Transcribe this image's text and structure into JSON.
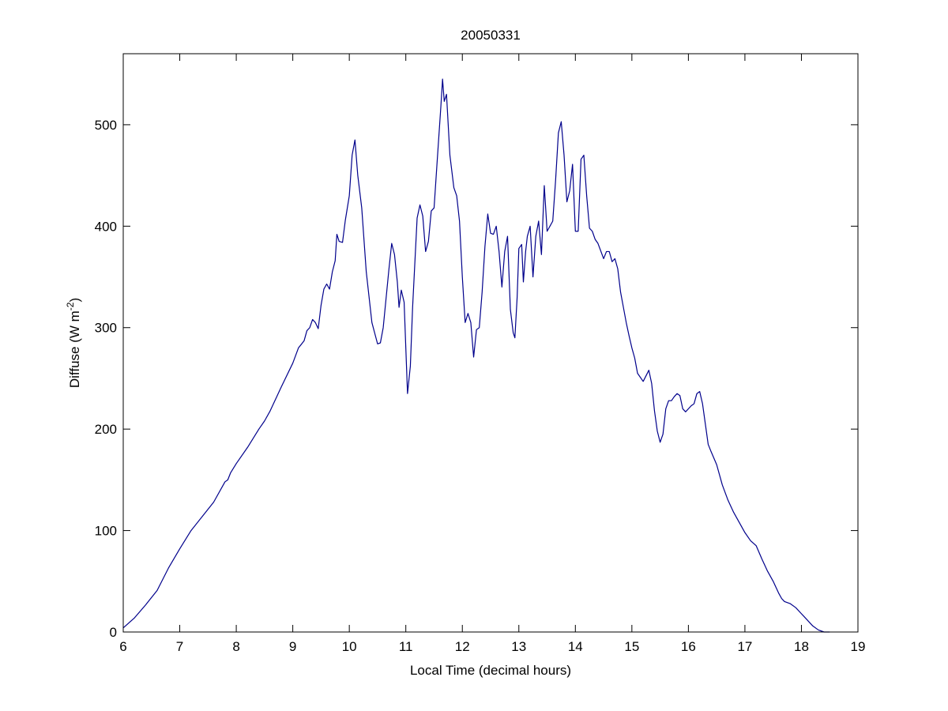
{
  "chart_data": {
    "type": "line",
    "title": "20050331",
    "xlabel": "Local Time (decimal hours)",
    "ylabel_prefix": "Diffuse (W m",
    "ylabel_exponent": "-2",
    "ylabel_suffix": ")",
    "xlim": [
      6,
      19
    ],
    "ylim": [
      0,
      570
    ],
    "xticks": [
      6,
      7,
      8,
      9,
      10,
      11,
      12,
      13,
      14,
      15,
      16,
      17,
      18,
      19
    ],
    "yticks": [
      0,
      100,
      200,
      300,
      400,
      500
    ],
    "grid": false,
    "legend": "none",
    "series": [
      {
        "color": "#00008b",
        "points": [
          [
            6.0,
            4
          ],
          [
            6.2,
            14
          ],
          [
            6.4,
            27
          ],
          [
            6.6,
            41
          ],
          [
            6.8,
            63
          ],
          [
            7.0,
            82
          ],
          [
            7.2,
            100
          ],
          [
            7.4,
            114
          ],
          [
            7.6,
            128
          ],
          [
            7.8,
            148
          ],
          [
            7.85,
            150
          ],
          [
            7.9,
            157
          ],
          [
            8.0,
            166
          ],
          [
            8.2,
            182
          ],
          [
            8.4,
            200
          ],
          [
            8.5,
            208
          ],
          [
            8.6,
            218
          ],
          [
            8.8,
            242
          ],
          [
            9.0,
            265
          ],
          [
            9.1,
            280
          ],
          [
            9.2,
            287
          ],
          [
            9.25,
            297
          ],
          [
            9.3,
            300
          ],
          [
            9.35,
            308
          ],
          [
            9.4,
            305
          ],
          [
            9.45,
            299
          ],
          [
            9.5,
            322
          ],
          [
            9.55,
            338
          ],
          [
            9.6,
            343
          ],
          [
            9.65,
            338
          ],
          [
            9.7,
            355
          ],
          [
            9.75,
            366
          ],
          [
            9.78,
            392
          ],
          [
            9.82,
            385
          ],
          [
            9.88,
            384
          ],
          [
            9.93,
            406
          ],
          [
            10.0,
            430
          ],
          [
            10.05,
            470
          ],
          [
            10.1,
            485
          ],
          [
            10.15,
            450
          ],
          [
            10.22,
            418
          ],
          [
            10.3,
            355
          ],
          [
            10.4,
            305
          ],
          [
            10.5,
            284
          ],
          [
            10.55,
            285
          ],
          [
            10.6,
            300
          ],
          [
            10.7,
            357
          ],
          [
            10.75,
            383
          ],
          [
            10.8,
            372
          ],
          [
            10.85,
            345
          ],
          [
            10.88,
            320
          ],
          [
            10.92,
            337
          ],
          [
            10.97,
            325
          ],
          [
            11.0,
            280
          ],
          [
            11.03,
            235
          ],
          [
            11.08,
            262
          ],
          [
            11.12,
            320
          ],
          [
            11.2,
            408
          ],
          [
            11.25,
            421
          ],
          [
            11.3,
            410
          ],
          [
            11.35,
            375
          ],
          [
            11.4,
            385
          ],
          [
            11.45,
            415
          ],
          [
            11.5,
            418
          ],
          [
            11.55,
            460
          ],
          [
            11.62,
            518
          ],
          [
            11.65,
            545
          ],
          [
            11.68,
            523
          ],
          [
            11.72,
            530
          ],
          [
            11.78,
            470
          ],
          [
            11.85,
            438
          ],
          [
            11.9,
            430
          ],
          [
            11.95,
            405
          ],
          [
            12.0,
            350
          ],
          [
            12.05,
            305
          ],
          [
            12.1,
            314
          ],
          [
            12.15,
            305
          ],
          [
            12.2,
            271
          ],
          [
            12.25,
            298
          ],
          [
            12.3,
            300
          ],
          [
            12.35,
            335
          ],
          [
            12.4,
            380
          ],
          [
            12.45,
            412
          ],
          [
            12.5,
            393
          ],
          [
            12.55,
            392
          ],
          [
            12.6,
            400
          ],
          [
            12.65,
            375
          ],
          [
            12.7,
            340
          ],
          [
            12.75,
            375
          ],
          [
            12.8,
            390
          ],
          [
            12.85,
            318
          ],
          [
            12.9,
            295
          ],
          [
            12.93,
            290
          ],
          [
            12.97,
            330
          ],
          [
            13.0,
            378
          ],
          [
            13.05,
            382
          ],
          [
            13.08,
            345
          ],
          [
            13.12,
            375
          ],
          [
            13.15,
            390
          ],
          [
            13.2,
            400
          ],
          [
            13.25,
            350
          ],
          [
            13.3,
            390
          ],
          [
            13.35,
            405
          ],
          [
            13.4,
            372
          ],
          [
            13.45,
            440
          ],
          [
            13.5,
            395
          ],
          [
            13.55,
            400
          ],
          [
            13.6,
            405
          ],
          [
            13.65,
            445
          ],
          [
            13.7,
            492
          ],
          [
            13.75,
            503
          ],
          [
            13.8,
            470
          ],
          [
            13.85,
            424
          ],
          [
            13.9,
            435
          ],
          [
            13.95,
            461
          ],
          [
            14.0,
            395
          ],
          [
            14.05,
            395
          ],
          [
            14.1,
            466
          ],
          [
            14.15,
            470
          ],
          [
            14.2,
            430
          ],
          [
            14.25,
            398
          ],
          [
            14.3,
            395
          ],
          [
            14.35,
            387
          ],
          [
            14.4,
            383
          ],
          [
            14.5,
            368
          ],
          [
            14.55,
            375
          ],
          [
            14.6,
            375
          ],
          [
            14.65,
            365
          ],
          [
            14.7,
            368
          ],
          [
            14.75,
            358
          ],
          [
            14.8,
            335
          ],
          [
            14.85,
            320
          ],
          [
            14.9,
            305
          ],
          [
            14.95,
            292
          ],
          [
            15.0,
            280
          ],
          [
            15.05,
            270
          ],
          [
            15.1,
            255
          ],
          [
            15.2,
            247
          ],
          [
            15.3,
            258
          ],
          [
            15.35,
            245
          ],
          [
            15.4,
            218
          ],
          [
            15.45,
            198
          ],
          [
            15.5,
            187
          ],
          [
            15.55,
            195
          ],
          [
            15.6,
            220
          ],
          [
            15.65,
            228
          ],
          [
            15.7,
            228
          ],
          [
            15.75,
            232
          ],
          [
            15.8,
            235
          ],
          [
            15.85,
            233
          ],
          [
            15.9,
            220
          ],
          [
            15.95,
            217
          ],
          [
            16.0,
            220
          ],
          [
            16.05,
            223
          ],
          [
            16.1,
            225
          ],
          [
            16.15,
            235
          ],
          [
            16.2,
            237
          ],
          [
            16.25,
            225
          ],
          [
            16.3,
            205
          ],
          [
            16.35,
            185
          ],
          [
            16.4,
            178
          ],
          [
            16.5,
            165
          ],
          [
            16.6,
            145
          ],
          [
            16.7,
            130
          ],
          [
            16.8,
            118
          ],
          [
            16.9,
            108
          ],
          [
            17.0,
            98
          ],
          [
            17.1,
            90
          ],
          [
            17.2,
            85
          ],
          [
            17.3,
            72
          ],
          [
            17.4,
            60
          ],
          [
            17.5,
            50
          ],
          [
            17.6,
            38
          ],
          [
            17.65,
            33
          ],
          [
            17.7,
            30
          ],
          [
            17.8,
            28
          ],
          [
            17.9,
            24
          ],
          [
            18.0,
            18
          ],
          [
            18.1,
            12
          ],
          [
            18.2,
            6
          ],
          [
            18.3,
            2
          ],
          [
            18.4,
            0
          ],
          [
            18.5,
            0
          ]
        ]
      }
    ]
  }
}
